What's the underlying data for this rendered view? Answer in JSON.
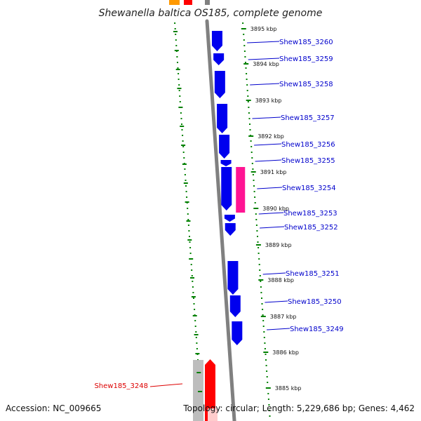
{
  "title": "Shewanella baltica OS185, complete genome",
  "accession": "Accession: NC_009665",
  "topology": "Topology: circular; Length: 5,229,686 bp; Genes: 4,462",
  "colors": {
    "plus_gene": "#0000ee",
    "minus_gene": "#ff0000",
    "rna_gene": "#ff1493",
    "pseudo_gene": "#bdbdbd",
    "other_gene": "#ff9900",
    "ruler": "#008000",
    "backbone": "#808080",
    "label_blue": "#0000cc",
    "label_red": "#dd0000"
  },
  "ruler": {
    "unit": "kbp",
    "ticks": [
      "3895 kbp",
      "3894 kbp",
      "3893 kbp",
      "3892 kbp",
      "3891 kbp",
      "3890 kbp",
      "3889 kbp",
      "3888 kbp",
      "3887 kbp",
      "3886 kbp",
      "3885 kbp"
    ]
  },
  "genes": [
    {
      "label": "Shew185_3260",
      "strand": "plus",
      "highlight": false
    },
    {
      "label": "Shew185_3259",
      "strand": "plus",
      "highlight": false
    },
    {
      "label": "Shew185_3258",
      "strand": "plus",
      "highlight": false
    },
    {
      "label": "Shew185_3257",
      "strand": "plus",
      "highlight": false
    },
    {
      "label": "Shew185_3256",
      "strand": "plus",
      "highlight": false
    },
    {
      "label": "Shew185_3255",
      "strand": "plus",
      "highlight": false
    },
    {
      "label": "Shew185_3254",
      "strand": "plus",
      "highlight": false
    },
    {
      "label": "Shew185_3253",
      "strand": "plus",
      "highlight": false
    },
    {
      "label": "Shew185_3252",
      "strand": "plus",
      "highlight": false
    },
    {
      "label": "Shew185_3251",
      "strand": "plus",
      "highlight": false
    },
    {
      "label": "Shew185_3250",
      "strand": "plus",
      "highlight": false
    },
    {
      "label": "Shew185_3249",
      "strand": "plus",
      "highlight": false
    },
    {
      "label": "Shew185_3248",
      "strand": "minus",
      "highlight": true
    }
  ]
}
